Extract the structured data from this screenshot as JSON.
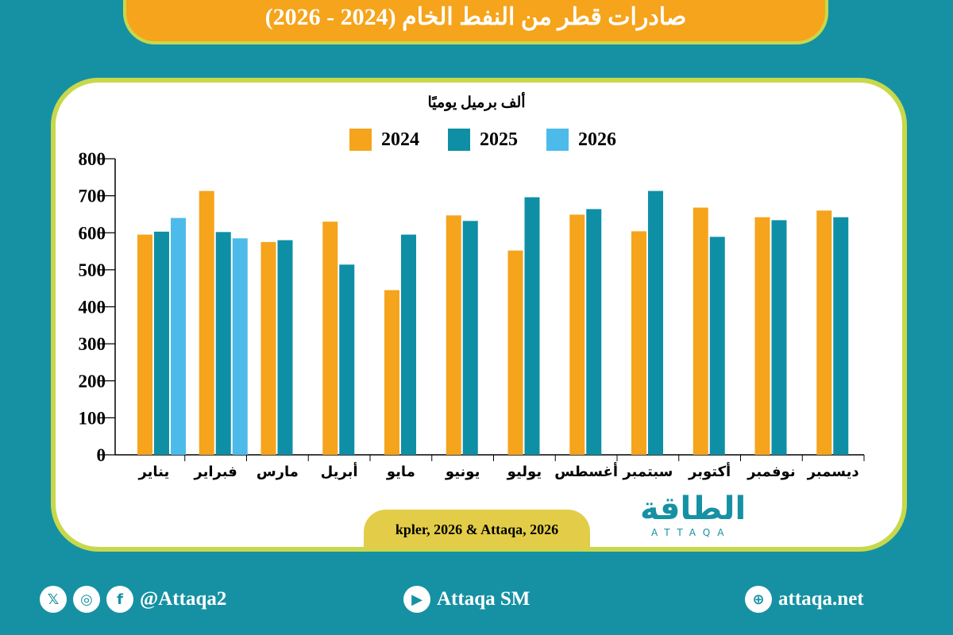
{
  "header": {
    "title": "صادرات قطر من النفط الخام (2024 - 2026)"
  },
  "colors": {
    "background": "#1691a3",
    "banner": "#f5a41c",
    "2024": "#f5a41c",
    "2025": "#0e8fa6",
    "2026": "#4dbbea"
  },
  "chart_data": {
    "type": "bar",
    "title": "صادرات قطر من النفط الخام (2024 - 2026)",
    "ylabel": "ألف برميل يوميًا",
    "xlabel": "",
    "ylim": [
      0,
      800
    ],
    "yticks": [
      0,
      100,
      200,
      300,
      400,
      500,
      600,
      700,
      800
    ],
    "grid": false,
    "legend": "top",
    "categories": [
      "يناير",
      "فبراير",
      "مارس",
      "أبريل",
      "مايو",
      "يونيو",
      "يوليو",
      "أغسطس",
      "سبتمبر",
      "أكتوبر",
      "نوفمبر",
      "ديسمبر"
    ],
    "series": [
      {
        "name": "2024",
        "color": "#f5a41c",
        "values": [
          595,
          713,
          575,
          630,
          445,
          647,
          552,
          649,
          604,
          668,
          642,
          660
        ]
      },
      {
        "name": "2025",
        "color": "#0e8fa6",
        "values": [
          603,
          602,
          580,
          514,
          595,
          632,
          696,
          664,
          713,
          589,
          634,
          642
        ]
      },
      {
        "name": "2026",
        "color": "#4dbbea",
        "values": [
          640,
          585,
          null,
          null,
          null,
          null,
          null,
          null,
          null,
          null,
          null,
          null
        ]
      }
    ]
  },
  "source": "kpler, 2026 & Attaqa, 2026",
  "logo": {
    "arabic": "الطاقة",
    "english": "ATTAQA"
  },
  "footer": {
    "social_handle": "@Attaqa2",
    "youtube": "Attaqa SM",
    "website": "attaqa.net"
  }
}
